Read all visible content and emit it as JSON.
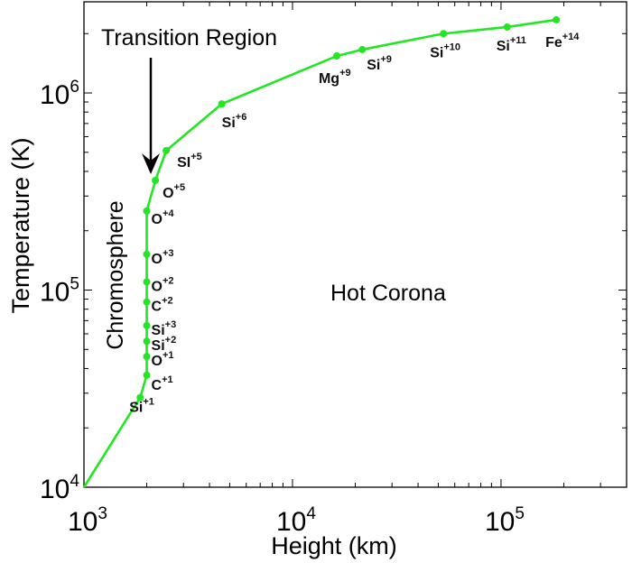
{
  "chart_data": {
    "type": "line",
    "title": "",
    "xlabel": "Height (km)",
    "ylabel": "Temperature (K)",
    "xscale": "log",
    "yscale": "log",
    "xlim": [
      1000,
      400000
    ],
    "ylim": [
      10000,
      2900000
    ],
    "x_ticks": [
      {
        "base": "10",
        "exp": "3",
        "value": 1000
      },
      {
        "base": "10",
        "exp": "4",
        "value": 10000
      },
      {
        "base": "10",
        "exp": "5",
        "value": 100000
      }
    ],
    "y_ticks": [
      {
        "base": "10",
        "exp": "4",
        "value": 10000
      },
      {
        "base": "10",
        "exp": "5",
        "value": 100000
      },
      {
        "base": "10",
        "exp": "6",
        "value": 1000000
      }
    ],
    "line_color": "#22e622",
    "start_point": {
      "x": 1000,
      "y": 10000
    },
    "series": [
      {
        "ion": "Si",
        "charge": "+1",
        "x": 1860,
        "y": 28500
      },
      {
        "ion": "C",
        "charge": "+1",
        "x": 2000,
        "y": 37000
      },
      {
        "ion": "O",
        "charge": "+1",
        "x": 2000,
        "y": 46000
      },
      {
        "ion": "Si",
        "charge": "+2",
        "x": 2000,
        "y": 55000
      },
      {
        "ion": "Si",
        "charge": "+3",
        "x": 2000,
        "y": 66000
      },
      {
        "ion": "C",
        "charge": "+2",
        "x": 2000,
        "y": 87000
      },
      {
        "ion": "O",
        "charge": "+2",
        "x": 2000,
        "y": 110000
      },
      {
        "ion": "O",
        "charge": "+3",
        "x": 2000,
        "y": 152000
      },
      {
        "ion": "O",
        "charge": "+4",
        "x": 2000,
        "y": 252000
      },
      {
        "ion": "O",
        "charge": "+5",
        "x": 2200,
        "y": 360000
      },
      {
        "ion": "SI",
        "charge": "+5",
        "x": 2480,
        "y": 510000
      },
      {
        "ion": "Si",
        "charge": "+6",
        "x": 4580,
        "y": 880000
      },
      {
        "ion": "Mg",
        "charge": "+9",
        "x": 16300,
        "y": 1540000
      },
      {
        "ion": "Si",
        "charge": "+9",
        "x": 21600,
        "y": 1660000
      },
      {
        "ion": "Si",
        "charge": "+10",
        "x": 53000,
        "y": 2000000
      },
      {
        "ion": "Si",
        "charge": "+11",
        "x": 107000,
        "y": 2160000
      },
      {
        "ion": "Fe",
        "charge": "+14",
        "x": 184000,
        "y": 2350000
      }
    ],
    "annotations": {
      "transition_region": "Transition Region",
      "chromosphere": "Chromosphere",
      "hot_corona": "Hot Corona"
    },
    "grid": false,
    "legend": "none"
  }
}
